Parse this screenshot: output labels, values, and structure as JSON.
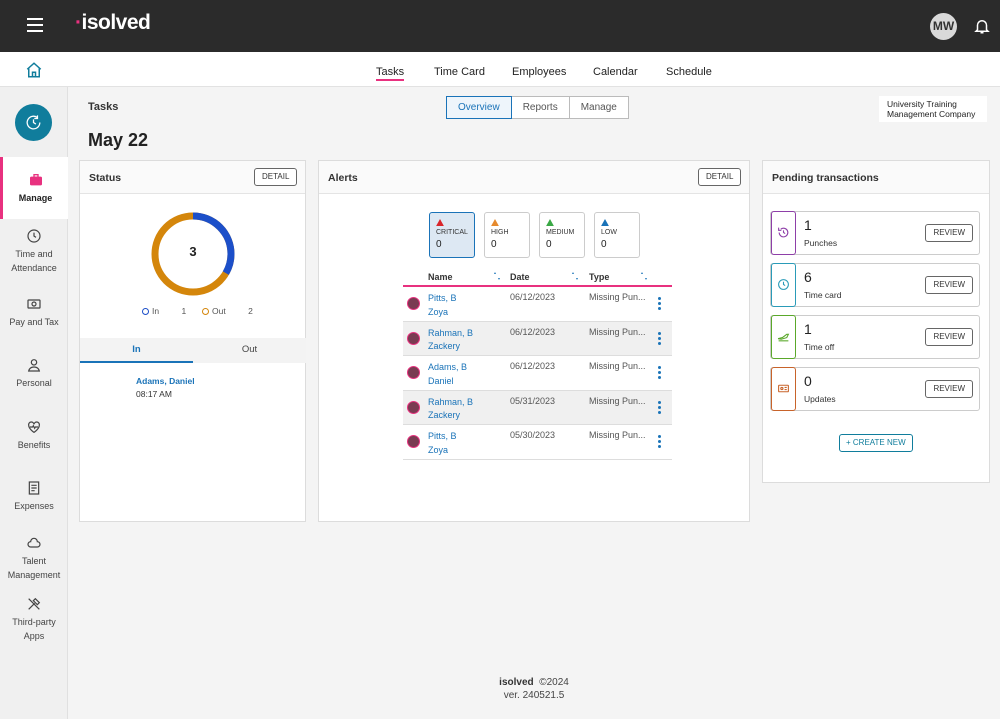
{
  "header": {
    "brand": "isolved",
    "avatar_initials": "MW",
    "icons": [
      "menu-icon",
      "bell-icon",
      "home-icon"
    ]
  },
  "nav": {
    "tabs": [
      {
        "label": "Tasks",
        "active": true
      },
      {
        "label": "Time Card"
      },
      {
        "label": "Employees"
      },
      {
        "label": "Calendar"
      },
      {
        "label": "Schedule"
      }
    ]
  },
  "sidebar": {
    "items": [
      {
        "label": "Manage",
        "icon": "briefcase-icon",
        "active": true
      },
      {
        "label": "Time and Attendance",
        "icon": "clock-icon"
      },
      {
        "label": "Pay and Tax",
        "icon": "money-icon"
      },
      {
        "label": "Personal",
        "icon": "person-icon"
      },
      {
        "label": "Benefits",
        "icon": "heart-icon"
      },
      {
        "label": "Expenses",
        "icon": "receipt-icon"
      },
      {
        "label": "Talent Management",
        "icon": "cloud-icon"
      },
      {
        "label": "Third-party Apps",
        "icon": "tools-icon"
      }
    ]
  },
  "page": {
    "section_label": "Tasks",
    "date_title": "May 22",
    "view_tabs": [
      "Overview",
      "Reports",
      "Manage"
    ],
    "company_line1": "University Training",
    "company_line2": "Management Company"
  },
  "status": {
    "title": "Status",
    "detail_label": "DETAIL",
    "total": "3",
    "in_label": "In",
    "in_count": "1",
    "out_label": "Out",
    "out_count": "2",
    "tab_in": "In",
    "tab_out": "Out",
    "employee_name": "Adams, Daniel",
    "employee_time": "08:17 AM",
    "colors": {
      "in": "#1c4fc9",
      "out": "#d4860b"
    }
  },
  "alerts": {
    "title": "Alerts",
    "detail_label": "DETAIL",
    "severity": [
      {
        "label": "CRITICAL",
        "count": "0",
        "color": "#d9262b"
      },
      {
        "label": "HIGH",
        "count": "0",
        "color": "#e68a2e"
      },
      {
        "label": "MEDIUM",
        "count": "0",
        "color": "#3aa845"
      },
      {
        "label": "LOW",
        "count": "0",
        "color": "#1a73b8"
      }
    ],
    "columns": [
      "Name",
      "Date",
      "Type"
    ],
    "rows": [
      {
        "name1": "Pitts, B",
        "name2": "Zoya",
        "date": "06/12/2023",
        "type": "Missing Pun..."
      },
      {
        "name1": "Rahman, B",
        "name2": "Zackery",
        "date": "06/12/2023",
        "type": "Missing Pun..."
      },
      {
        "name1": "Adams, B",
        "name2": "Daniel",
        "date": "06/12/2023",
        "type": "Missing Pun..."
      },
      {
        "name1": "Rahman, B",
        "name2": "Zackery",
        "date": "05/31/2023",
        "type": "Missing Pun..."
      },
      {
        "name1": "Pitts, B",
        "name2": "Zoya",
        "date": "05/30/2023",
        "type": "Missing Pun..."
      }
    ]
  },
  "pending": {
    "title": "Pending transactions",
    "review_label": "REVIEW",
    "create_label": "+ CREATE NEW",
    "items": [
      {
        "count": "1",
        "label": "Punches",
        "color": "#8e3fa8",
        "icon": "history-icon"
      },
      {
        "count": "6",
        "label": "Time card",
        "color": "#2a9bb8",
        "icon": "clock-icon"
      },
      {
        "count": "1",
        "label": "Time off",
        "color": "#5aa82a",
        "icon": "plane-icon"
      },
      {
        "count": "0",
        "label": "Updates",
        "color": "#c8632a",
        "icon": "id-card-icon"
      }
    ]
  },
  "footer": {
    "brand": "isolved",
    "copyright": "©2024",
    "version": "ver. 240521.5"
  }
}
